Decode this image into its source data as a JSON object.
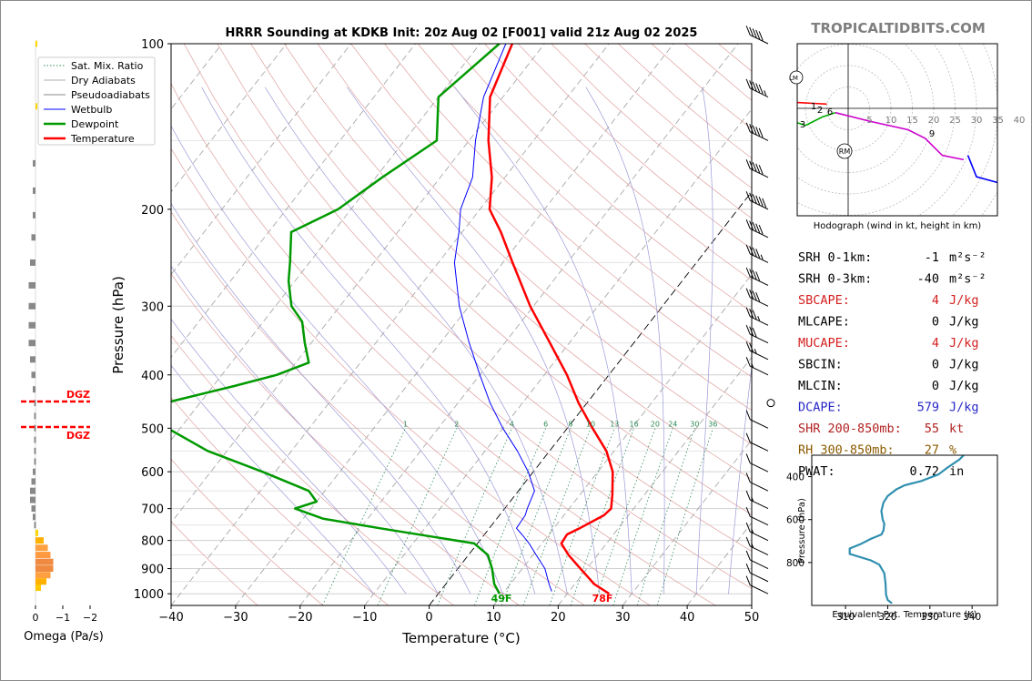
{
  "chart_data": {
    "type": "skew-t",
    "title": "HRRR Sounding at KDKB Init: 20z Aug 02 [F001] valid 21z Aug 02 2025",
    "watermark": "TROPICALTIDBITS.COM",
    "xlabel": "Temperature (°C)",
    "ylabel": "Pressure (hPa)",
    "xlim": [
      -40,
      50
    ],
    "ylim": [
      1050,
      100
    ],
    "x_ticks": [
      "−40",
      "−30",
      "−20",
      "−10",
      "0",
      "10",
      "20",
      "30",
      "40",
      "50"
    ],
    "x_tick_values": [
      -40,
      -30,
      -20,
      -10,
      0,
      10,
      20,
      30,
      40,
      50
    ],
    "y_ticks": [
      "100",
      "200",
      "300",
      "400",
      "500",
      "600",
      "700",
      "800",
      "900",
      "1000"
    ],
    "y_tick_values": [
      100,
      200,
      300,
      400,
      500,
      600,
      700,
      800,
      900,
      1000
    ],
    "legend": {
      "position": "top-left",
      "items": [
        {
          "label": "Sat. Mix. Ratio",
          "color": "#2e8b57",
          "style": "dotted"
        },
        {
          "label": "Dry Adiabats",
          "color": "#b0b0b0",
          "style": "solid"
        },
        {
          "label": "Pseudoadiabats",
          "color": "#8a8a8a",
          "style": "solid"
        },
        {
          "label": "Wetbulb",
          "color": "#0000ff",
          "style": "solid"
        },
        {
          "label": "Dewpoint",
          "color": "#009900",
          "style": "solid"
        },
        {
          "label": "Temperature",
          "color": "#ff0000",
          "style": "solid"
        }
      ]
    },
    "series": [
      {
        "name": "Temperature",
        "color": "#ff0000",
        "points": [
          [
            1000,
            26.5
          ],
          [
            960,
            23
          ],
          [
            900,
            19
          ],
          [
            850,
            15.5
          ],
          [
            810,
            13
          ],
          [
            780,
            12.8
          ],
          [
            760,
            14
          ],
          [
            720,
            16.2
          ],
          [
            700,
            16.5
          ],
          [
            660,
            15
          ],
          [
            600,
            12.3
          ],
          [
            550,
            8.8
          ],
          [
            500,
            3.9
          ],
          [
            450,
            -1.3
          ],
          [
            400,
            -6.5
          ],
          [
            350,
            -13
          ],
          [
            300,
            -20.5
          ],
          [
            250,
            -28.5
          ],
          [
            220,
            -34
          ],
          [
            200,
            -38.5
          ],
          [
            175,
            -42
          ],
          [
            150,
            -47
          ],
          [
            125,
            -52
          ],
          [
            100,
            -55
          ]
        ]
      },
      {
        "name": "Wetbulb",
        "color": "#0000ff",
        "points": [
          [
            990,
            17.3
          ],
          [
            960,
            16
          ],
          [
            900,
            13.5
          ],
          [
            850,
            10.5
          ],
          [
            810,
            8
          ],
          [
            780,
            5.8
          ],
          [
            760,
            4.2
          ],
          [
            720,
            4
          ],
          [
            700,
            3.5
          ],
          [
            650,
            2.5
          ],
          [
            600,
            -0.8
          ],
          [
            550,
            -5
          ],
          [
            500,
            -10
          ],
          [
            450,
            -15
          ],
          [
            400,
            -20
          ],
          [
            350,
            -25.5
          ],
          [
            300,
            -31.5
          ],
          [
            250,
            -37.5
          ],
          [
            220,
            -40.5
          ],
          [
            200,
            -43
          ],
          [
            175,
            -45
          ],
          [
            150,
            -49
          ],
          [
            125,
            -53
          ],
          [
            100,
            -56
          ]
        ]
      },
      {
        "name": "Dewpoint",
        "color": "#009900",
        "points": [
          [
            1000,
            9.5
          ],
          [
            960,
            7.5
          ],
          [
            900,
            5.3
          ],
          [
            850,
            3
          ],
          [
            810,
            -0.5
          ],
          [
            790,
            -7
          ],
          [
            760,
            -17
          ],
          [
            730,
            -27
          ],
          [
            700,
            -32.5
          ],
          [
            680,
            -30
          ],
          [
            650,
            -32.5
          ],
          [
            600,
            -42
          ],
          [
            550,
            -53
          ],
          [
            500,
            -62
          ],
          [
            470,
            -66.5
          ],
          [
            450,
            -65.5
          ],
          [
            420,
            -57
          ],
          [
            400,
            -51.5
          ],
          [
            380,
            -48
          ],
          [
            350,
            -51
          ],
          [
            320,
            -54
          ],
          [
            300,
            -57.5
          ],
          [
            270,
            -61
          ],
          [
            250,
            -63
          ],
          [
            220,
            -66.5
          ],
          [
            200,
            -62
          ],
          [
            175,
            -59
          ],
          [
            150,
            -55
          ],
          [
            125,
            -60
          ],
          [
            100,
            -57
          ]
        ]
      }
    ],
    "surface_labels": {
      "dewpoint": "49F",
      "temperature": "78F"
    },
    "mixing_ratio_labels": [
      "1",
      "2",
      "4",
      "6",
      "8",
      "10",
      "13",
      "16",
      "20",
      "24",
      "30",
      "36"
    ],
    "omega_panel": {
      "xlabel": "Omega (Pa/s)",
      "x_ticks": [
        "0",
        "−1",
        "−2"
      ],
      "dgz_label": "DGZ",
      "dgz_top": 455,
      "dgz_bottom": 492,
      "bars": [
        [
          100,
          -0.05,
          "#ffd700"
        ],
        [
          130,
          -0.05,
          "#ffd700"
        ],
        [
          165,
          0.1,
          "#888888"
        ],
        [
          185,
          0.1,
          "#888888"
        ],
        [
          205,
          0.1,
          "#888888"
        ],
        [
          225,
          0.15,
          "#888888"
        ],
        [
          250,
          0.2,
          "#888888"
        ],
        [
          275,
          0.25,
          "#888888"
        ],
        [
          300,
          0.25,
          "#888888"
        ],
        [
          325,
          0.25,
          "#888888"
        ],
        [
          350,
          0.25,
          "#888888"
        ],
        [
          375,
          0.2,
          "#888888"
        ],
        [
          400,
          0.15,
          "#888888"
        ],
        [
          425,
          0.1,
          "#888888"
        ],
        [
          450,
          0.05,
          "#888888"
        ],
        [
          475,
          0.05,
          "#888888"
        ],
        [
          500,
          0.05,
          "#888888"
        ],
        [
          525,
          0.05,
          "#888888"
        ],
        [
          550,
          0.05,
          "#888888"
        ],
        [
          575,
          0.05,
          "#888888"
        ],
        [
          600,
          0.1,
          "#888888"
        ],
        [
          625,
          0.15,
          "#888888"
        ],
        [
          650,
          0.2,
          "#888888"
        ],
        [
          675,
          0.2,
          "#888888"
        ],
        [
          700,
          0.15,
          "#888888"
        ],
        [
          725,
          0.1,
          "#888888"
        ],
        [
          750,
          0.05,
          "#888888"
        ],
        [
          775,
          -0.1,
          "#ffd700"
        ],
        [
          800,
          -0.3,
          "#ffb000"
        ],
        [
          825,
          -0.45,
          "#ffa040"
        ],
        [
          850,
          -0.55,
          "#ff9a40"
        ],
        [
          875,
          -0.65,
          "#f08a40"
        ],
        [
          900,
          -0.65,
          "#f08a40"
        ],
        [
          925,
          -0.55,
          "#ffa040"
        ],
        [
          950,
          -0.4,
          "#ffb000"
        ],
        [
          975,
          -0.2,
          "#ffc800"
        ]
      ]
    },
    "wind_barbs": [
      [
        100,
        50,
        "#000000"
      ],
      [
        125,
        55,
        "#000000"
      ],
      [
        150,
        50,
        "#000000"
      ],
      [
        175,
        50,
        "#000000"
      ],
      [
        200,
        60,
        "#000000"
      ],
      [
        225,
        50,
        "#000000"
      ],
      [
        250,
        45,
        "#000000"
      ],
      [
        275,
        40,
        "#000000"
      ],
      [
        300,
        40,
        "#000000"
      ],
      [
        325,
        35,
        "#000000"
      ],
      [
        350,
        30,
        "#000000"
      ],
      [
        375,
        25,
        "#000000"
      ],
      [
        400,
        15,
        "#000000"
      ],
      [
        450,
        0,
        "#000000"
      ],
      [
        500,
        10,
        "#000000"
      ],
      [
        550,
        10,
        "#000000"
      ],
      [
        600,
        10,
        "#000000"
      ],
      [
        650,
        10,
        "#000000"
      ],
      [
        700,
        15,
        "#000000"
      ],
      [
        750,
        10,
        "#000000"
      ],
      [
        800,
        15,
        "#000000"
      ],
      [
        850,
        15,
        "#000000"
      ],
      [
        900,
        10,
        "#000000"
      ],
      [
        950,
        10,
        "#000000"
      ],
      [
        1000,
        10,
        "#000000"
      ]
    ],
    "hodograph": {
      "caption": "Hodograph (wind in kt, height in km)",
      "ring_labels": [
        "5",
        "10",
        "15",
        "20",
        "25",
        "30",
        "35",
        "40"
      ],
      "ring_values": [
        5,
        10,
        15,
        20,
        25,
        30,
        35,
        40
      ],
      "markers": [
        "LM",
        "RM"
      ],
      "height_labels": [
        "1",
        "2",
        "3",
        "6",
        "9"
      ],
      "segments": [
        {
          "color": "#ff0000",
          "points": [
            [
              -5,
              1
            ],
            [
              -14,
              1.5
            ],
            [
              -13,
              -3
            ]
          ]
        },
        {
          "color": "#00aa00",
          "points": [
            [
              -13,
              -3
            ],
            [
              -10,
              -4
            ],
            [
              -6,
              -2
            ],
            [
              -3,
              -1
            ]
          ]
        },
        {
          "color": "#cc00cc",
          "points": [
            [
              -3,
              -1
            ],
            [
              5,
              -3
            ],
            [
              14,
              -5
            ],
            [
              18,
              -7
            ],
            [
              22,
              -11
            ],
            [
              27,
              -12
            ]
          ]
        },
        {
          "color": "#0000ff",
          "points": [
            [
              28,
              -11
            ],
            [
              30,
              -16
            ],
            [
              41,
              -19
            ],
            [
              43,
              -30
            ]
          ]
        }
      ]
    },
    "indices": [
      {
        "label": "SRH 0-1km:",
        "value": "-1",
        "unit": "m²s⁻²",
        "color": "#000000"
      },
      {
        "label": "SRH 0-3km:",
        "value": "-40",
        "unit": "m²s⁻²",
        "color": "#000000"
      },
      {
        "label": "SBCAPE:",
        "value": "4",
        "unit": "J/kg",
        "color": "#d42020"
      },
      {
        "label": "MLCAPE:",
        "value": "0",
        "unit": "J/kg",
        "color": "#000000"
      },
      {
        "label": "MUCAPE:",
        "value": "4",
        "unit": "J/kg",
        "color": "#d42020"
      },
      {
        "label": "SBCIN:",
        "value": "0",
        "unit": "J/kg",
        "color": "#000000"
      },
      {
        "label": "MLCIN:",
        "value": "0",
        "unit": "J/kg",
        "color": "#000000"
      },
      {
        "label": "DCAPE:",
        "value": "579",
        "unit": "J/kg",
        "color": "#2828c8"
      },
      {
        "label": "SHR 200-850mb:",
        "value": "55",
        "unit": "kt",
        "color": "#b22222"
      },
      {
        "label": "RH 300-850mb:",
        "value": "27",
        "unit": "%",
        "color": "#8b5a00"
      },
      {
        "label": "PWAT:",
        "value": "0.72",
        "unit": "in",
        "color": "#000000"
      }
    ],
    "theta_e_panel": {
      "xlabel": "Equivalent Pot. Temperature (K)",
      "ylabel": "Pressure (hPa)",
      "x_ticks": [
        "310",
        "320",
        "330",
        "340"
      ],
      "x_tick_values": [
        310,
        320,
        330,
        340
      ],
      "y_ticks": [
        "400",
        "600",
        "800"
      ],
      "y_tick_values": [
        400,
        600,
        800
      ],
      "xlim": [
        302,
        346
      ],
      "ylim": [
        1000,
        300
      ],
      "color": "#2f8fb0",
      "points": [
        [
          990,
          321
        ],
        [
          975,
          320
        ],
        [
          950,
          319.6
        ],
        [
          900,
          319.5
        ],
        [
          850,
          319.2
        ],
        [
          810,
          318
        ],
        [
          790,
          316
        ],
        [
          760,
          311
        ],
        [
          735,
          311
        ],
        [
          715,
          313.5
        ],
        [
          690,
          316
        ],
        [
          670,
          318.5
        ],
        [
          650,
          319
        ],
        [
          620,
          319.2
        ],
        [
          600,
          318.8
        ],
        [
          560,
          318.5
        ],
        [
          520,
          319
        ],
        [
          490,
          320
        ],
        [
          460,
          322
        ],
        [
          440,
          324
        ],
        [
          420,
          328
        ],
        [
          390,
          332
        ],
        [
          360,
          334
        ],
        [
          320,
          337
        ],
        [
          300,
          338
        ]
      ]
    }
  }
}
